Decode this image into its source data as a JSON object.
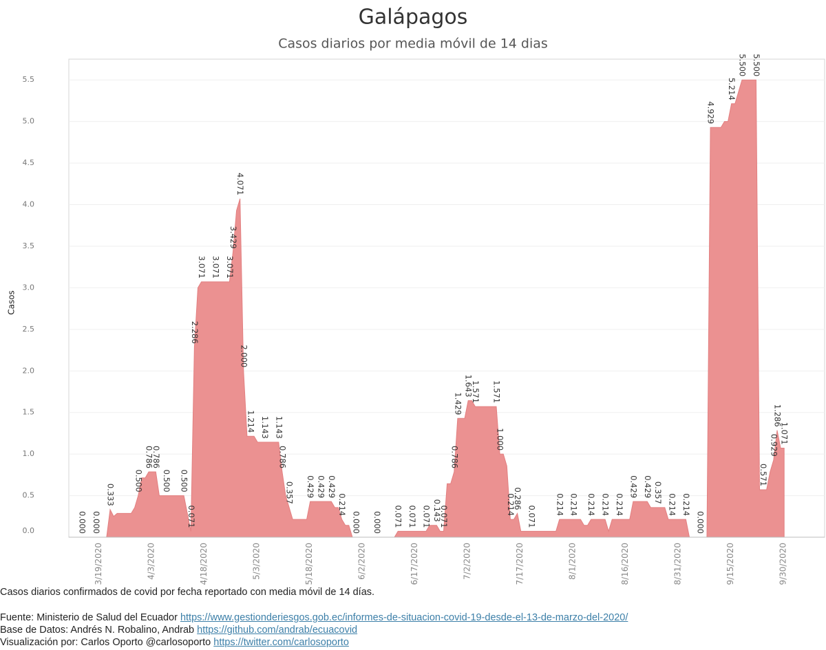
{
  "chart_data": {
    "type": "area",
    "title": "Galápagos",
    "subtitle": "Casos diarios por media móvil de 14 dias",
    "ylabel": "Casos",
    "color": "#eb9191",
    "grid": true,
    "ylim": [
      0,
      5.75
    ],
    "yticks": [
      {
        "value": 0,
        "label": "0.0"
      },
      0.5,
      {
        "value": 1,
        "label": "1.0"
      },
      1.5,
      {
        "value": 2,
        "label": "2.0"
      },
      2.5,
      {
        "value": 3,
        "label": "3.0"
      },
      3.5,
      {
        "value": 4,
        "label": "4.0"
      },
      4.5,
      {
        "value": 5,
        "label": "5.0"
      },
      5.5
    ],
    "categories": [
      null,
      null,
      null,
      null,
      null,
      null,
      "3/19/2020",
      null,
      null,
      null,
      null,
      null,
      null,
      null,
      null,
      null,
      null,
      null,
      null,
      null,
      null,
      "4/3/2020",
      null,
      null,
      null,
      null,
      null,
      null,
      null,
      null,
      null,
      null,
      null,
      null,
      null,
      null,
      "4/18/2020",
      null,
      null,
      null,
      null,
      null,
      null,
      null,
      null,
      null,
      null,
      null,
      null,
      null,
      null,
      "5/3/2020",
      null,
      null,
      null,
      null,
      null,
      null,
      null,
      null,
      null,
      null,
      null,
      null,
      null,
      null,
      "5/18/2020",
      null,
      null,
      null,
      null,
      null,
      null,
      null,
      null,
      null,
      null,
      null,
      null,
      null,
      null,
      "6/2/2020",
      null,
      null,
      null,
      null,
      null,
      null,
      null,
      null,
      null,
      null,
      null,
      null,
      null,
      null,
      "6/17/2020",
      null,
      null,
      null,
      null,
      null,
      null,
      null,
      null,
      null,
      null,
      null,
      null,
      null,
      null,
      "7/2/2020",
      null,
      null,
      null,
      null,
      null,
      null,
      null,
      null,
      null,
      null,
      null,
      null,
      null,
      null,
      "7/17/2020",
      null,
      null,
      null,
      null,
      null,
      null,
      null,
      null,
      null,
      null,
      null,
      null,
      null,
      null,
      "8/1/2020",
      null,
      null,
      null,
      null,
      null,
      null,
      null,
      null,
      null,
      null,
      null,
      null,
      null,
      null,
      "8/16/2020",
      null,
      null,
      null,
      null,
      null,
      null,
      null,
      null,
      null,
      null,
      null,
      null,
      null,
      null,
      "8/31/2020",
      null,
      null,
      null,
      null,
      null,
      null,
      null,
      null,
      null,
      null,
      null,
      null,
      null,
      null,
      "9/15/2020",
      null,
      null,
      null,
      null,
      null,
      null,
      null,
      null,
      null,
      null,
      null,
      null,
      null,
      null,
      "9/30/2020",
      null
    ],
    "values": [
      0,
      0,
      0,
      0,
      0,
      0,
      0,
      0,
      0,
      0,
      0.333,
      0.25,
      0.286,
      0.286,
      0.286,
      0.286,
      0.286,
      0.357,
      0.5,
      0.714,
      0.714,
      0.786,
      0.786,
      0.786,
      0.5,
      0.5,
      0.5,
      0.5,
      0.5,
      0.5,
      0.5,
      0.5,
      0.286,
      0.071,
      2.286,
      3.0,
      3.071,
      3.071,
      3.071,
      3.071,
      3.071,
      3.071,
      3.071,
      3.071,
      3.071,
      3.429,
      3.929,
      4.071,
      2.0,
      1.214,
      1.214,
      1.214,
      1.143,
      1.143,
      1.143,
      1.143,
      1.143,
      1.143,
      1.143,
      0.786,
      0.5,
      0.357,
      0.214,
      0.214,
      0.214,
      0.214,
      0.214,
      0.429,
      0.429,
      0.429,
      0.429,
      0.429,
      0.429,
      0.429,
      0.357,
      0.357,
      0.214,
      0.143,
      0.143,
      0,
      0,
      0,
      0,
      0,
      0,
      0,
      0,
      0,
      0,
      0,
      0,
      0,
      0.071,
      0.071,
      0.071,
      0.071,
      0.071,
      0.071,
      0.071,
      0.071,
      0.071,
      0.143,
      0.143,
      0.143,
      0.071,
      0.071,
      0.643,
      0.643,
      0.786,
      1.429,
      1.429,
      1.429,
      1.643,
      1.643,
      1.571,
      1.571,
      1.571,
      1.571,
      1.571,
      1.571,
      1.571,
      1.0,
      1.0,
      0.857,
      0.214,
      0.214,
      0.286,
      0.071,
      0.071,
      0.071,
      0.071,
      0.071,
      0.071,
      0.071,
      0.071,
      0.071,
      0.071,
      0.071,
      0.214,
      0.214,
      0.214,
      0.214,
      0.214,
      0.214,
      0.214,
      0.143,
      0.143,
      0.214,
      0.214,
      0.214,
      0.214,
      0.214,
      0.071,
      0.214,
      0.214,
      0.214,
      0.214,
      0.214,
      0.214,
      0.429,
      0.429,
      0.429,
      0.429,
      0.429,
      0.357,
      0.357,
      0.357,
      0.357,
      0.357,
      0.214,
      0.214,
      0.214,
      0.214,
      0.214,
      0.214,
      0,
      0,
      0,
      0,
      0,
      0,
      4.929,
      4.929,
      4.929,
      4.929,
      5.0,
      5.0,
      5.214,
      5.214,
      5.357,
      5.5,
      5.5,
      5.5,
      5.5,
      5.5,
      0.571,
      0.571,
      0.571,
      0.786,
      0.929,
      1.286,
      1.071,
      1.071
    ],
    "value_labels": [
      null,
      null,
      "0.000",
      null,
      null,
      null,
      "0.000",
      null,
      null,
      null,
      "0.333",
      null,
      null,
      null,
      null,
      null,
      null,
      null,
      "0.500",
      null,
      null,
      "0.786",
      null,
      "0.786",
      null,
      null,
      "0.500",
      null,
      null,
      null,
      null,
      "0.500",
      null,
      "0.071",
      "2.286",
      null,
      "3.071",
      null,
      null,
      null,
      "3.071",
      null,
      null,
      null,
      "3.071",
      "3.429",
      null,
      "4.071",
      "2.000",
      null,
      "1.214",
      null,
      null,
      null,
      "1.143",
      null,
      null,
      null,
      "1.143",
      "0.786",
      null,
      "0.357",
      null,
      null,
      null,
      null,
      null,
      "0.429",
      null,
      null,
      "0.429",
      null,
      null,
      "0.429",
      null,
      null,
      "0.214",
      null,
      null,
      null,
      "0.000",
      null,
      null,
      null,
      null,
      null,
      "0.000",
      null,
      null,
      null,
      null,
      null,
      "0.071",
      null,
      null,
      null,
      "0.071",
      null,
      null,
      null,
      "0.071",
      null,
      null,
      "0.143",
      null,
      "0.071",
      null,
      null,
      "0.786",
      "1.429",
      null,
      null,
      "1.643",
      null,
      "1.571",
      null,
      null,
      null,
      null,
      null,
      "1.571",
      "1.000",
      null,
      null,
      "0.214",
      null,
      "0.286",
      null,
      null,
      null,
      "0.071",
      null,
      null,
      null,
      null,
      null,
      null,
      null,
      "0.214",
      null,
      null,
      null,
      "0.214",
      null,
      null,
      null,
      null,
      "0.214",
      null,
      null,
      null,
      "0.214",
      null,
      null,
      null,
      "0.214",
      null,
      null,
      null,
      "0.429",
      null,
      null,
      null,
      "0.429",
      null,
      null,
      "0.357",
      null,
      null,
      null,
      "0.214",
      null,
      null,
      null,
      "0.214",
      null,
      null,
      null,
      "0.000",
      null,
      null,
      "4.929",
      null,
      null,
      null,
      null,
      null,
      "5.214",
      null,
      null,
      "5.500",
      null,
      null,
      null,
      "5.500",
      null,
      "0.571",
      null,
      null,
      "0.929",
      "1.286",
      null,
      "1.071"
    ],
    "footnote": "Casos diarios confirmados de covid por fecha reportado con media móvil de 14 días.",
    "credits": [
      {
        "text": "Fuente: Ministerio de Salud del Ecuador",
        "link": "https://www.gestionderiesgos.gob.ec/informes-de-situacion-covid-19-desde-el-13-de-marzo-del-2020/"
      },
      {
        "text": "Base de Datos: Andrés N. Robalino, Andrab",
        "link": "https://github.com/andrab/ecuacovid"
      },
      {
        "text": "Visualización por: Carlos Oporto @carlosoporto",
        "link": "https://twitter.com/carlosoporto"
      }
    ]
  }
}
